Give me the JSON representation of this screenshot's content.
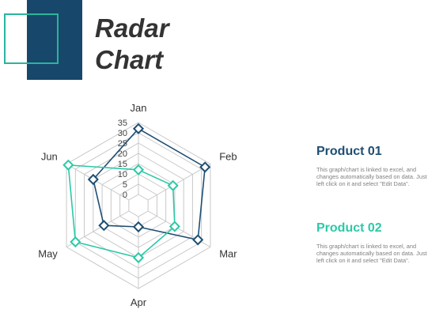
{
  "slide": {
    "title_line1": "Radar",
    "title_line2": "Chart"
  },
  "chart_data": {
    "type": "radar",
    "categories": [
      "Jan",
      "Feb",
      "Mar",
      "Apr",
      "May",
      "Jun"
    ],
    "rlim": [
      0,
      35
    ],
    "ticks": [
      0,
      5,
      10,
      15,
      20,
      25,
      30,
      35
    ],
    "grid": true,
    "series": [
      {
        "name": "Product 01",
        "color": "#1e4e72",
        "values": [
          32,
          32,
          28,
          5,
          14,
          20
        ]
      },
      {
        "name": "Product 02",
        "color": "#2bc9a8",
        "values": [
          12,
          14,
          15,
          20,
          30,
          34
        ]
      }
    ]
  },
  "legend": [
    {
      "title": "Product 01",
      "color": "#1e4e72",
      "desc": "This graph/chart is linked to excel, and changes automatically based on data. Just left click on it and select \"Edit Data\"."
    },
    {
      "title": "Product 02",
      "color": "#2bc9a8",
      "desc": "This graph/chart is linked to excel, and changes automatically based on data. Just left click on it and select \"Edit Data\"."
    }
  ]
}
